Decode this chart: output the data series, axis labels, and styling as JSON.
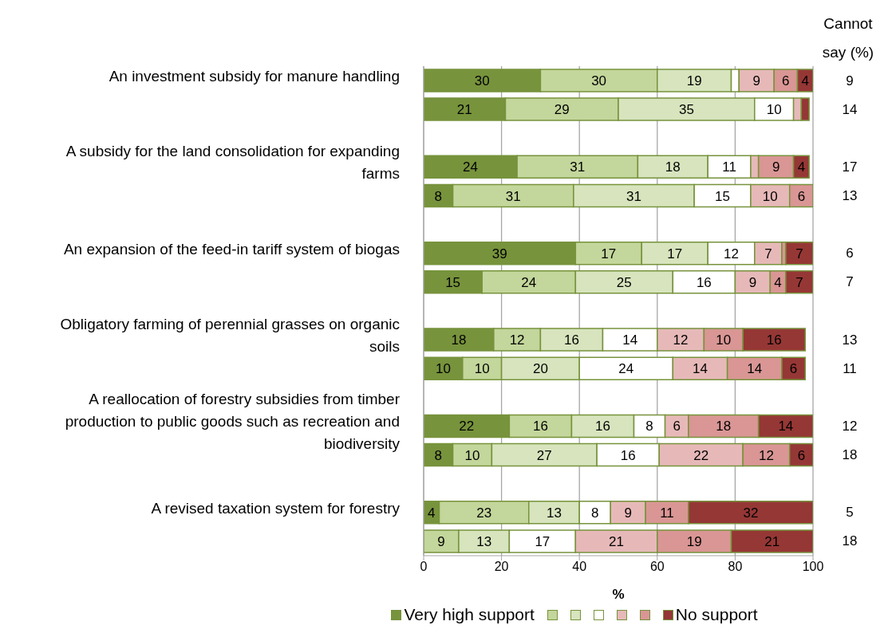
{
  "chart_data": {
    "type": "bar",
    "orientation": "horizontal",
    "stacked": true,
    "xlabel": "%",
    "categories": [
      "An investment subsidy for manure handling",
      null,
      null,
      "A subsidy for the land consolidation for expanding farms",
      null,
      null,
      "An expansion of the feed-in tariff system of biogas",
      null,
      null,
      "Obligatory farming of perennial grasses on organic soils",
      null,
      null,
      "A reallocation of forestry subsidies from timber production to public goods such as recreation and biodiversity",
      null,
      null,
      "A revised taxation system for forestry",
      null
    ],
    "series": [
      {
        "name": "Very high support",
        "color": "#77933c",
        "values": [
          30,
          21,
          null,
          24,
          7.5,
          null,
          39,
          15,
          null,
          18,
          10,
          null,
          22,
          7.5,
          null,
          4,
          null
        ],
        "value_labels": [
          "30",
          "21",
          null,
          "24",
          "8",
          null,
          "39",
          "15",
          null,
          "18",
          "10",
          null,
          "22",
          "8",
          null,
          "4",
          null
        ]
      },
      {
        "color": "#c3d69b",
        "values": [
          30,
          29,
          null,
          31,
          31,
          null,
          17,
          24,
          null,
          12,
          10,
          null,
          16,
          10,
          null,
          23,
          9
        ],
        "value_labels": [
          "30",
          "29",
          null,
          "31",
          "31",
          null,
          "17",
          "24",
          null,
          "12",
          "10",
          null,
          "16",
          "10",
          null,
          "23",
          "9"
        ]
      },
      {
        "color": "#d7e4bd",
        "values": [
          19,
          35,
          null,
          18,
          31,
          null,
          17,
          25,
          null,
          16,
          20,
          null,
          16,
          27,
          null,
          13,
          13
        ],
        "value_labels": [
          "19",
          "35",
          null,
          "18",
          "31",
          null,
          "17",
          "25",
          null,
          "16",
          "20",
          null,
          "16",
          "27",
          null,
          "13",
          "13"
        ]
      },
      {
        "color": "#ffffff",
        "values": [
          2,
          10,
          null,
          11,
          14.5,
          null,
          12,
          16,
          null,
          14,
          24,
          null,
          8,
          16,
          null,
          8,
          17
        ],
        "value_labels": [
          null,
          "10",
          null,
          "11",
          "15",
          null,
          "12",
          "16",
          null,
          "14",
          "24",
          null,
          "8",
          "16",
          null,
          "8",
          "17"
        ]
      },
      {
        "color": "#e6b9b8",
        "values": [
          9,
          2,
          null,
          2,
          10,
          null,
          7,
          9,
          null,
          12,
          14,
          null,
          6,
          21.5,
          null,
          9,
          21
        ],
        "value_labels": [
          "9",
          null,
          null,
          null,
          "10",
          null,
          "7",
          "9",
          null,
          "12",
          "14",
          null,
          "6",
          "22",
          null,
          "9",
          "21"
        ]
      },
      {
        "color": "#d99694",
        "values": [
          6,
          null,
          null,
          9,
          6,
          null,
          1,
          4,
          null,
          10,
          14,
          null,
          18,
          12,
          null,
          11,
          19
        ],
        "value_labels": [
          "6",
          null,
          null,
          "9",
          "6",
          null,
          null,
          "4",
          null,
          "10",
          "14",
          null,
          "18",
          "12",
          null,
          "11",
          "19"
        ]
      },
      {
        "name": "No support",
        "color": "#953735",
        "values": [
          4,
          2,
          null,
          4,
          null,
          null,
          7,
          7,
          null,
          16,
          6,
          null,
          14,
          6,
          null,
          32,
          21
        ],
        "value_labels": [
          "4",
          null,
          null,
          "4",
          null,
          null,
          "7",
          "7",
          null,
          "16",
          "6",
          null,
          "14",
          "6",
          null,
          "32",
          "21"
        ]
      }
    ],
    "xlim": [
      0,
      100
    ],
    "xticks": [
      0,
      20,
      40,
      60,
      80,
      100
    ],
    "grid": "x",
    "legend": "bottom",
    "annotations": [
      "Cannot say (%)",
      "9",
      "14",
      "17",
      "13",
      "6",
      "7",
      "13",
      "11",
      "12",
      "18",
      "5",
      "18"
    ]
  }
}
